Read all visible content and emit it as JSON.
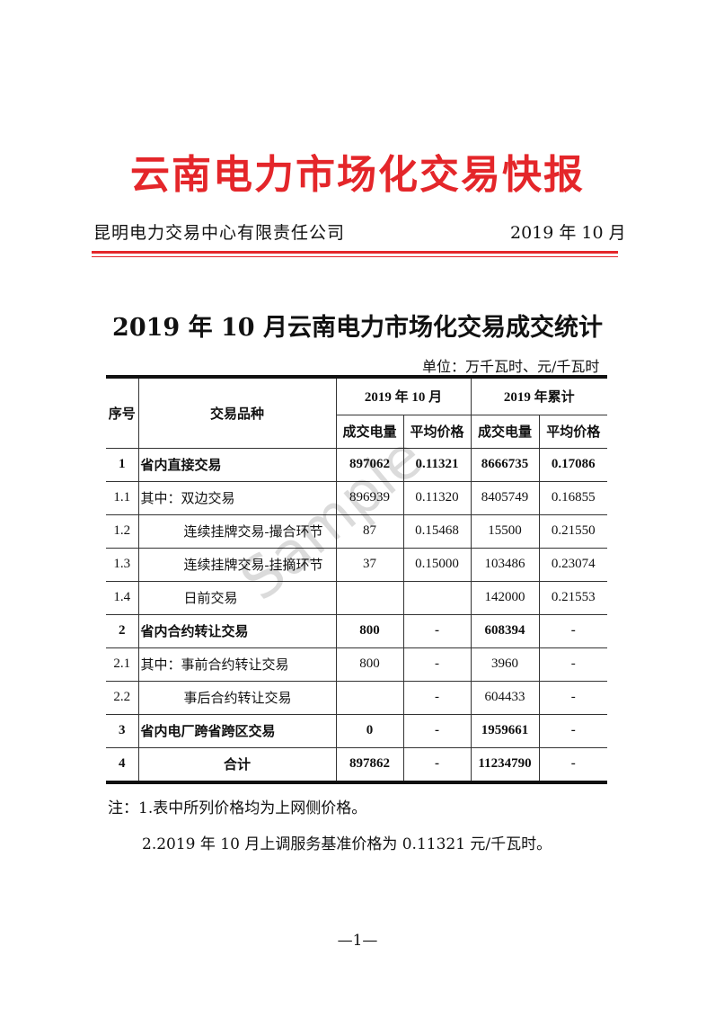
{
  "header": {
    "title": "云南电力市场化交易快报",
    "org": "昆明电力交易中心有限责任公司",
    "date": "2019 年 10 月",
    "accent": "#e4262a"
  },
  "report": {
    "heading": "2019 年 10 月云南电力市场化交易成交统计",
    "unit": "单位：万千瓦时、元/千瓦时"
  },
  "table": {
    "headers": {
      "seq": "序号",
      "type": "交易品种",
      "month": "2019 年 10 月",
      "ytd": "2019 年累计",
      "volume": "成交电量",
      "price": "平均价格"
    },
    "rows": [
      {
        "seq": "1",
        "name": "省内直接交易",
        "m_vol": "897062",
        "m_price": "0.11321",
        "y_vol": "8666735",
        "y_price": "0.17086"
      },
      {
        "seq": "1.1",
        "name": "其中：双边交易",
        "m_vol": "896939",
        "m_price": "0.11320",
        "y_vol": "8405749",
        "y_price": "0.16855"
      },
      {
        "seq": "1.2",
        "name": "连续挂牌交易-撮合环节",
        "m_vol": "87",
        "m_price": "0.15468",
        "y_vol": "15500",
        "y_price": "0.21550"
      },
      {
        "seq": "1.3",
        "name": "连续挂牌交易-挂摘环节",
        "m_vol": "37",
        "m_price": "0.15000",
        "y_vol": "103486",
        "y_price": "0.23074"
      },
      {
        "seq": "1.4",
        "name": "日前交易",
        "m_vol": "",
        "m_price": "",
        "y_vol": "142000",
        "y_price": "0.21553"
      },
      {
        "seq": "2",
        "name": "省内合约转让交易",
        "m_vol": "800",
        "m_price": "-",
        "y_vol": "608394",
        "y_price": "-"
      },
      {
        "seq": "2.1",
        "name": "其中：事前合约转让交易",
        "m_vol": "800",
        "m_price": "-",
        "y_vol": "3960",
        "y_price": "-"
      },
      {
        "seq": "2.2",
        "name": "事后合约转让交易",
        "m_vol": "",
        "m_price": "-",
        "y_vol": "604433",
        "y_price": "-"
      },
      {
        "seq": "3",
        "name": "省内电厂跨省跨区交易",
        "m_vol": "0",
        "m_price": "-",
        "y_vol": "1959661",
        "y_price": "-"
      },
      {
        "seq": "4",
        "name": "合计",
        "m_vol": "897862",
        "m_price": "-",
        "y_vol": "11234790",
        "y_price": "-"
      }
    ]
  },
  "notes": [
    "注：1.表中所列价格均为上网侧价格。",
    "2.2019 年 10 月上调服务基准价格为 0.11321 元/千瓦时。"
  ],
  "watermark": "Sample",
  "page_number": "—1—"
}
